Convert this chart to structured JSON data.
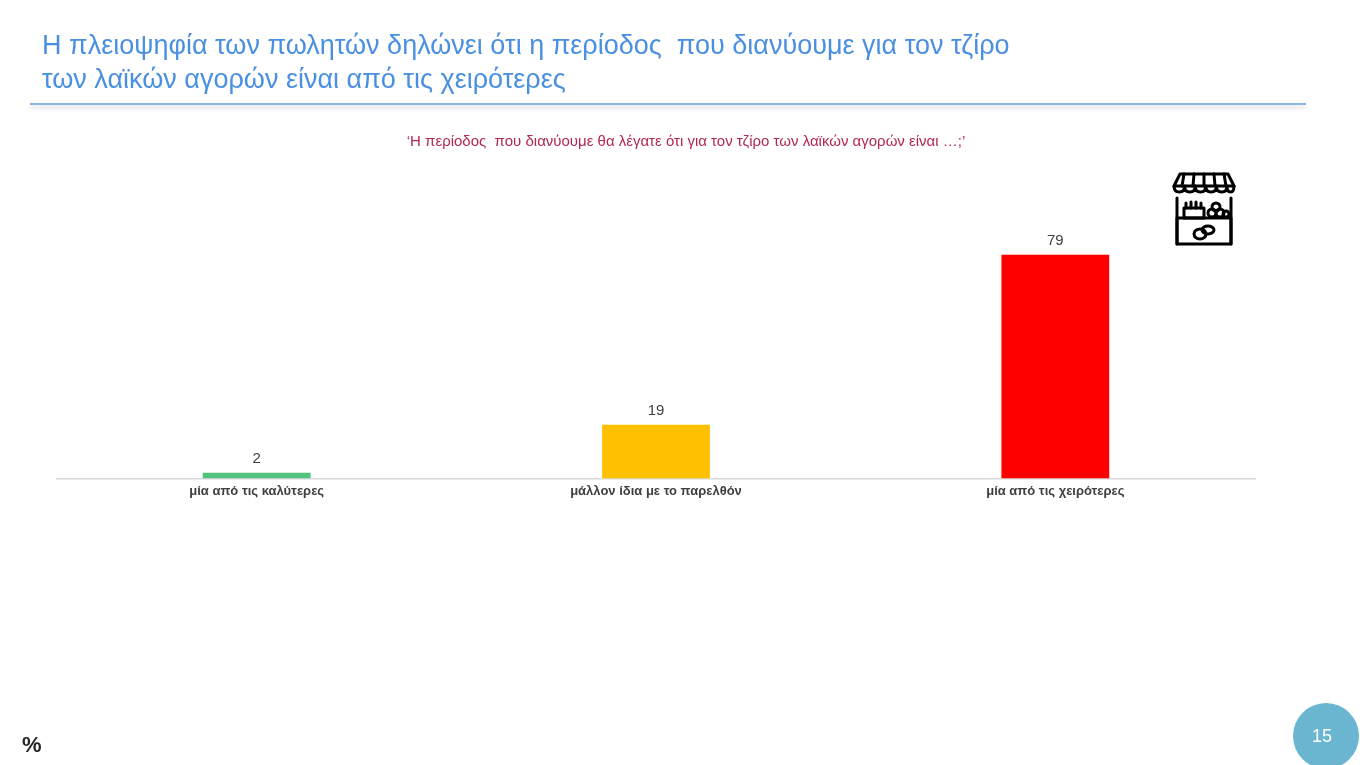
{
  "chart_data": {
    "type": "bar",
    "title": "Η πλειοψηφία των πωλητών δηλώνει ότι η περίοδος  που διανύουμε για τον τζίρο των λαϊκών αγορών είναι από τις χειρότερες",
    "subtitle": "‘Η περίοδος  που διανύουμε θα λέγατε ότι για τον τζίρο των λαϊκών αγορών είναι …;’",
    "categories": [
      "μία από τις καλύτερες",
      "μάλλον ίδια με το παρελθόν",
      "μία από τις χειρότερες"
    ],
    "values": [
      2,
      19,
      79
    ],
    "colors": [
      "#52c37e",
      "#ffc000",
      "#ff0000"
    ],
    "data_labels": true,
    "annotations": [
      "%",
      "15"
    ]
  }
}
